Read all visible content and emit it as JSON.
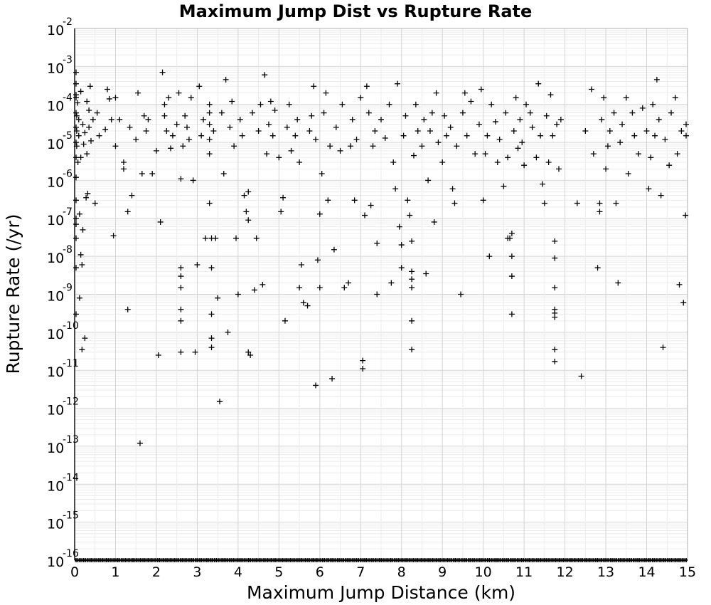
{
  "chart_data": {
    "type": "scatter",
    "title": "Maximum Jump Dist vs Rupture Rate",
    "xlabel": "Maximum Jump Distance (km)",
    "ylabel": "Rupture Rate (/yr)",
    "xlim": [
      0,
      15
    ],
    "ylim": [
      1e-16,
      0.01
    ],
    "yscale": "log",
    "grid": true,
    "legend": "none",
    "marker": "+",
    "marker_color": "#000000",
    "x_ticks": [
      "0",
      "1",
      "2",
      "3",
      "4",
      "5",
      "6",
      "7",
      "8",
      "9",
      "10",
      "11",
      "12",
      "13",
      "14",
      "15"
    ],
    "y_ticks": [
      {
        "base": "10",
        "exp": "-2"
      },
      {
        "base": "10",
        "exp": "-3"
      },
      {
        "base": "10",
        "exp": "-4"
      },
      {
        "base": "10",
        "exp": "-5"
      },
      {
        "base": "10",
        "exp": "-6"
      },
      {
        "base": "10",
        "exp": "-7"
      },
      {
        "base": "10",
        "exp": "-8"
      },
      {
        "base": "10",
        "exp": "-9"
      },
      {
        "base": "10",
        "exp": "-10"
      },
      {
        "base": "10",
        "exp": "-11"
      },
      {
        "base": "10",
        "exp": "-12"
      },
      {
        "base": "10",
        "exp": "-13"
      },
      {
        "base": "10",
        "exp": "-14"
      },
      {
        "base": "10",
        "exp": "-15"
      },
      {
        "base": "10",
        "exp": "-16"
      }
    ],
    "points": [
      [
        0.0,
        0.00018
      ],
      [
        0.0,
        0.0007
      ],
      [
        0.0,
        0.00035
      ],
      [
        0.0,
        0.00015
      ],
      [
        0.0,
        6e-05
      ],
      [
        0.0,
        2.5e-05
      ],
      [
        0.0,
        1e-05
      ],
      [
        0.0,
        4e-06
      ],
      [
        0.0,
        1.2e-06
      ],
      [
        0.0,
        3e-07
      ],
      [
        0.0,
        7e-08
      ],
      [
        0.0,
        5e-09
      ],
      [
        0.0,
        3e-10
      ],
      [
        0.02,
        1e-07
      ],
      [
        0.03,
        3e-08
      ],
      [
        0.05,
        8e-06
      ],
      [
        0.05,
        2e-05
      ],
      [
        0.05,
        5e-05
      ],
      [
        0.07,
        0.00011
      ],
      [
        0.08,
        3e-06
      ],
      [
        0.1,
        4e-05
      ],
      [
        0.1,
        1.5e-05
      ],
      [
        0.12,
        8e-10
      ],
      [
        0.12,
        1.3e-07
      ],
      [
        0.15,
        1.1e-08
      ],
      [
        0.15,
        4e-06
      ],
      [
        0.15,
        0.00022
      ],
      [
        0.18,
        6e-09
      ],
      [
        0.18,
        3.5e-11
      ],
      [
        0.2,
        5e-08
      ],
      [
        0.2,
        3e-05
      ],
      [
        0.22,
        9e-06
      ],
      [
        0.25,
        7e-11
      ],
      [
        0.25,
        1.8e-05
      ],
      [
        0.28,
        3.5e-07
      ],
      [
        0.3,
        0.00012
      ],
      [
        0.3,
        5e-06
      ],
      [
        0.32,
        4.5e-07
      ],
      [
        0.35,
        7e-05
      ],
      [
        0.35,
        2.5e-05
      ],
      [
        0.38,
        0.0003
      ],
      [
        0.4,
        1.1e-05
      ],
      [
        0.45,
        4e-05
      ],
      [
        0.5,
        2.5e-07
      ],
      [
        0.55,
        6e-05
      ],
      [
        0.6,
        1.5e-05
      ],
      [
        0.75,
        2.2e-05
      ],
      [
        0.8,
        0.00025
      ],
      [
        0.85,
        0.00014
      ],
      [
        0.9,
        4e-05
      ],
      [
        0.95,
        3.5e-08
      ],
      [
        1.0,
        8e-06
      ],
      [
        1.0,
        0.00015
      ],
      [
        1.1,
        4e-05
      ],
      [
        1.2,
        3e-06
      ],
      [
        1.2,
        2e-06
      ],
      [
        1.3,
        1.5e-07
      ],
      [
        1.3,
        4e-10
      ],
      [
        1.35,
        2.5e-05
      ],
      [
        1.4,
        4e-07
      ],
      [
        1.5,
        1.2e-05
      ],
      [
        1.55,
        0.0002
      ],
      [
        1.6,
        1.2e-13
      ],
      [
        1.65,
        1.5e-06
      ],
      [
        1.7,
        5e-05
      ],
      [
        1.75,
        2e-05
      ],
      [
        1.8,
        4e-05
      ],
      [
        1.9,
        1.5e-06
      ],
      [
        2.0,
        6e-06
      ],
      [
        2.05,
        2.5e-11
      ],
      [
        2.1,
        8e-08
      ],
      [
        2.15,
        0.0007
      ],
      [
        2.2,
        0.0001
      ],
      [
        2.2,
        5e-05
      ],
      [
        2.25,
        2e-05
      ],
      [
        2.3,
        0.00015
      ],
      [
        2.35,
        7e-06
      ],
      [
        2.4,
        1.5e-05
      ],
      [
        2.5,
        3e-05
      ],
      [
        2.55,
        0.0002
      ],
      [
        2.6,
        5e-09
      ],
      [
        2.6,
        3e-09
      ],
      [
        2.6,
        1.5e-09
      ],
      [
        2.6,
        4e-10
      ],
      [
        2.6,
        2e-10
      ],
      [
        2.6,
        3e-11
      ],
      [
        2.6,
        1.1e-06
      ],
      [
        2.65,
        8e-06
      ],
      [
        2.7,
        5e-05
      ],
      [
        2.75,
        2.5e-05
      ],
      [
        2.8,
        1.2e-05
      ],
      [
        2.85,
        0.00015
      ],
      [
        2.9,
        1e-06
      ],
      [
        2.95,
        3e-11
      ],
      [
        3.0,
        6e-09
      ],
      [
        3.05,
        0.0003
      ],
      [
        3.1,
        1.5e-05
      ],
      [
        3.15,
        4e-05
      ],
      [
        3.2,
        3e-08
      ],
      [
        3.3,
        0.0001
      ],
      [
        3.3,
        6e-05
      ],
      [
        3.3,
        3e-05
      ],
      [
        3.3,
        1.2e-05
      ],
      [
        3.3,
        5e-06
      ],
      [
        3.3,
        2.5e-07
      ],
      [
        3.35,
        3e-08
      ],
      [
        3.35,
        5e-09
      ],
      [
        3.35,
        3e-10
      ],
      [
        3.35,
        7e-11
      ],
      [
        3.35,
        4e-11
      ],
      [
        3.4,
        2e-05
      ],
      [
        3.45,
        3e-08
      ],
      [
        3.5,
        8e-10
      ],
      [
        3.55,
        1.5e-12
      ],
      [
        3.6,
        6e-05
      ],
      [
        3.65,
        1.5e-06
      ],
      [
        3.7,
        0.00045
      ],
      [
        3.75,
        1e-10
      ],
      [
        3.8,
        2.5e-05
      ],
      [
        3.85,
        0.00012
      ],
      [
        3.9,
        8e-06
      ],
      [
        3.95,
        3e-08
      ],
      [
        4.0,
        1e-09
      ],
      [
        4.05,
        4e-05
      ],
      [
        4.1,
        1.5e-05
      ],
      [
        4.15,
        4e-07
      ],
      [
        4.2,
        1.5e-07
      ],
      [
        4.25,
        5e-07
      ],
      [
        4.25,
        9e-08
      ],
      [
        4.25,
        3e-11
      ],
      [
        4.3,
        2.5e-11
      ],
      [
        4.35,
        6e-05
      ],
      [
        4.4,
        1.3e-09
      ],
      [
        4.45,
        3e-08
      ],
      [
        4.5,
        2e-05
      ],
      [
        4.55,
        0.0001
      ],
      [
        4.6,
        1.8e-09
      ],
      [
        4.65,
        0.0006
      ],
      [
        4.7,
        5e-06
      ],
      [
        4.75,
        3e-05
      ],
      [
        4.8,
        0.00012
      ],
      [
        4.85,
        1.5e-05
      ],
      [
        4.9,
        7e-05
      ],
      [
        5.0,
        4e-06
      ],
      [
        5.05,
        1.5e-07
      ],
      [
        5.1,
        3.5e-07
      ],
      [
        5.15,
        2e-10
      ],
      [
        5.2,
        2.5e-05
      ],
      [
        5.25,
        0.0001
      ],
      [
        5.3,
        6e-06
      ],
      [
        5.4,
        1.5e-05
      ],
      [
        5.45,
        4e-05
      ],
      [
        5.5,
        3e-06
      ],
      [
        5.5,
        1.5e-09
      ],
      [
        5.55,
        6e-09
      ],
      [
        5.6,
        6e-10
      ],
      [
        5.7,
        5e-10
      ],
      [
        5.75,
        2e-05
      ],
      [
        5.8,
        5e-05
      ],
      [
        5.85,
        0.0003
      ],
      [
        5.9,
        1.2e-05
      ],
      [
        5.9,
        4e-12
      ],
      [
        5.95,
        8e-09
      ],
      [
        6.0,
        1.5e-09
      ],
      [
        6.0,
        1.3e-07
      ],
      [
        6.05,
        1.5e-06
      ],
      [
        6.1,
        6e-05
      ],
      [
        6.15,
        0.0002
      ],
      [
        6.2,
        3e-07
      ],
      [
        6.25,
        8e-06
      ],
      [
        6.3,
        6e-12
      ],
      [
        6.35,
        1.5e-08
      ],
      [
        6.4,
        2.5e-05
      ],
      [
        6.5,
        6e-06
      ],
      [
        6.55,
        0.0001
      ],
      [
        6.6,
        1.5e-09
      ],
      [
        6.7,
        2e-09
      ],
      [
        6.75,
        8e-06
      ],
      [
        6.8,
        4e-05
      ],
      [
        6.85,
        3e-07
      ],
      [
        6.9,
        1.2e-05
      ],
      [
        7.0,
        0.00015
      ],
      [
        7.05,
        1.1e-11
      ],
      [
        7.05,
        1.8e-11
      ],
      [
        7.1,
        1.2e-07
      ],
      [
        7.15,
        0.0003
      ],
      [
        7.2,
        6e-05
      ],
      [
        7.25,
        2.2e-07
      ],
      [
        7.3,
        8e-06
      ],
      [
        7.35,
        2e-05
      ],
      [
        7.4,
        1e-09
      ],
      [
        7.4,
        2.2e-08
      ],
      [
        7.5,
        4e-05
      ],
      [
        7.6,
        1.3e-05
      ],
      [
        7.7,
        0.0001
      ],
      [
        7.75,
        2e-09
      ],
      [
        7.8,
        3e-06
      ],
      [
        7.85,
        6e-07
      ],
      [
        7.9,
        0.00035
      ],
      [
        7.95,
        6e-08
      ],
      [
        8.0,
        5e-09
      ],
      [
        8.0,
        2e-08
      ],
      [
        8.05,
        1.5e-05
      ],
      [
        8.1,
        5e-05
      ],
      [
        8.15,
        3e-07
      ],
      [
        8.2,
        1.2e-07
      ],
      [
        8.25,
        2.5e-08
      ],
      [
        8.25,
        4e-09
      ],
      [
        8.25,
        2.5e-09
      ],
      [
        8.25,
        1.5e-09
      ],
      [
        8.25,
        2e-10
      ],
      [
        8.25,
        3.5e-11
      ],
      [
        8.3,
        4.5e-06
      ],
      [
        8.35,
        0.0001
      ],
      [
        8.4,
        2e-05
      ],
      [
        8.5,
        8e-06
      ],
      [
        8.55,
        4e-05
      ],
      [
        8.6,
        3.5e-09
      ],
      [
        8.65,
        1e-06
      ],
      [
        8.7,
        2e-05
      ],
      [
        8.75,
        6e-05
      ],
      [
        8.8,
        8e-08
      ],
      [
        8.85,
        0.0002
      ],
      [
        8.9,
        1e-05
      ],
      [
        9.0,
        3e-06
      ],
      [
        9.05,
        5e-05
      ],
      [
        9.1,
        1.5e-05
      ],
      [
        9.2,
        2.5e-05
      ],
      [
        9.25,
        6e-07
      ],
      [
        9.3,
        2.5e-07
      ],
      [
        9.35,
        8e-06
      ],
      [
        9.45,
        1e-09
      ],
      [
        9.5,
        6e-05
      ],
      [
        9.55,
        0.0002
      ],
      [
        9.6,
        1.5e-05
      ],
      [
        9.7,
        0.00012
      ],
      [
        9.8,
        5e-06
      ],
      [
        9.9,
        3e-05
      ],
      [
        9.95,
        0.00025
      ],
      [
        10.0,
        3e-07
      ],
      [
        10.05,
        5e-06
      ],
      [
        10.1,
        1.5e-05
      ],
      [
        10.15,
        1e-08
      ],
      [
        10.2,
        0.0001
      ],
      [
        10.3,
        3.5e-05
      ],
      [
        10.35,
        3e-06
      ],
      [
        10.4,
        1.2e-05
      ],
      [
        10.5,
        7e-07
      ],
      [
        10.55,
        6e-05
      ],
      [
        10.6,
        3e-08
      ],
      [
        10.6,
        4e-06
      ],
      [
        10.65,
        3e-08
      ],
      [
        10.7,
        1e-08
      ],
      [
        10.7,
        3e-09
      ],
      [
        10.7,
        4e-08
      ],
      [
        10.7,
        3e-10
      ],
      [
        10.75,
        2e-05
      ],
      [
        10.8,
        0.00015
      ],
      [
        10.85,
        7e-06
      ],
      [
        10.9,
        4e-05
      ],
      [
        10.95,
        1e-05
      ],
      [
        11.0,
        2.5e-06
      ],
      [
        11.05,
        0.0001
      ],
      [
        11.15,
        6e-05
      ],
      [
        11.2,
        2.5e-05
      ],
      [
        11.3,
        4e-06
      ],
      [
        11.35,
        0.00035
      ],
      [
        11.4,
        1.5e-05
      ],
      [
        11.45,
        8e-07
      ],
      [
        11.5,
        2.5e-07
      ],
      [
        11.55,
        5e-05
      ],
      [
        11.6,
        3e-06
      ],
      [
        11.65,
        0.00018
      ],
      [
        11.7,
        1.5e-05
      ],
      [
        11.75,
        2.5e-08
      ],
      [
        11.75,
        9e-09
      ],
      [
        11.75,
        1.5e-09
      ],
      [
        11.75,
        4e-10
      ],
      [
        11.75,
        3.2e-10
      ],
      [
        11.75,
        2.5e-10
      ],
      [
        11.75,
        3.5e-11
      ],
      [
        11.75,
        1.7e-11
      ],
      [
        11.8,
        3e-05
      ],
      [
        11.85,
        2e-06
      ],
      [
        11.9,
        4e-05
      ],
      [
        12.3,
        2.5e-07
      ],
      [
        12.4,
        7e-12
      ],
      [
        12.5,
        2e-05
      ],
      [
        12.65,
        0.00025
      ],
      [
        12.7,
        5e-06
      ],
      [
        12.8,
        5e-09
      ],
      [
        12.85,
        2.5e-07
      ],
      [
        12.85,
        1.5e-07
      ],
      [
        12.9,
        4e-05
      ],
      [
        12.95,
        0.00015
      ],
      [
        13.0,
        2e-06
      ],
      [
        13.05,
        8e-06
      ],
      [
        13.1,
        2e-05
      ],
      [
        13.2,
        6e-05
      ],
      [
        13.25,
        2.5e-07
      ],
      [
        13.3,
        2e-09
      ],
      [
        13.35,
        1e-05
      ],
      [
        13.4,
        3e-05
      ],
      [
        13.5,
        0.00015
      ],
      [
        13.55,
        1.5e-06
      ],
      [
        13.65,
        6e-05
      ],
      [
        13.7,
        1.5e-05
      ],
      [
        13.8,
        5e-06
      ],
      [
        13.9,
        8e-05
      ],
      [
        14.0,
        2e-05
      ],
      [
        14.05,
        6e-07
      ],
      [
        14.1,
        4e-06
      ],
      [
        14.15,
        0.0001
      ],
      [
        14.2,
        1.5e-05
      ],
      [
        14.25,
        0.00045
      ],
      [
        14.3,
        4e-05
      ],
      [
        14.35,
        4e-07
      ],
      [
        14.4,
        4e-11
      ],
      [
        14.45,
        1.2e-05
      ],
      [
        14.55,
        2.5e-06
      ],
      [
        14.6,
        6e-05
      ],
      [
        14.7,
        0.00015
      ],
      [
        14.75,
        5e-06
      ],
      [
        14.8,
        1.8e-09
      ],
      [
        14.85,
        2e-05
      ],
      [
        14.9,
        6e-10
      ],
      [
        14.95,
        1.2e-07
      ],
      [
        15.0,
        1.5e-05
      ],
      [
        15.0,
        3e-05
      ]
    ],
    "floor_value": 1e-16,
    "floor_note": "dense band of points at the 10^-16 floor across the full x range"
  }
}
